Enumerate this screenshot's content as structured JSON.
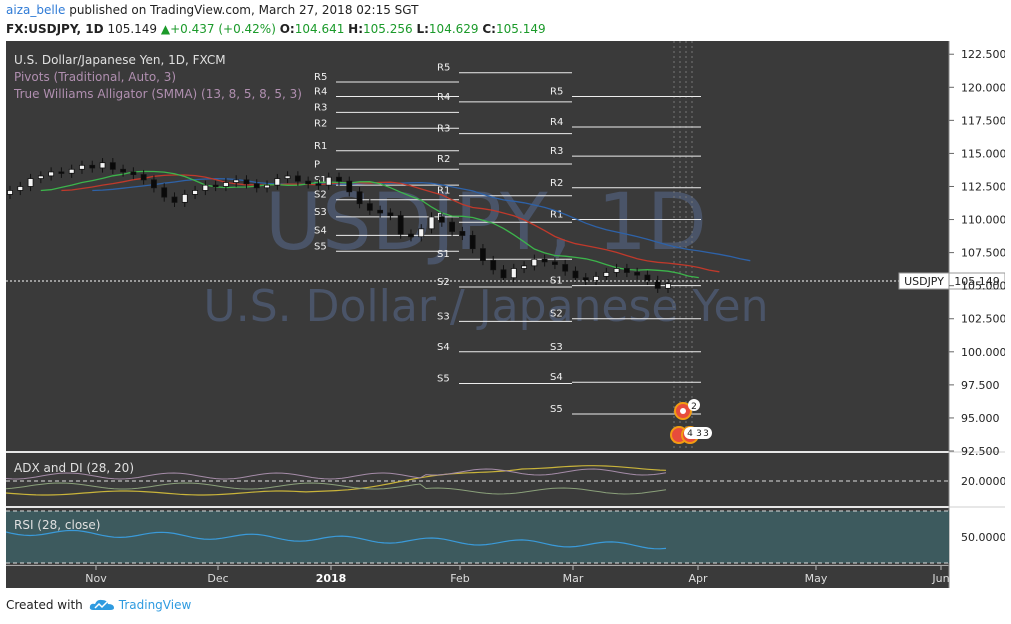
{
  "header": {
    "user": "aiza_belle",
    "published_text": " published on TradingView.com, March 27, 2018 02:15 SGT",
    "symbol": "FX:USDJPY, 1D",
    "price": "105.149",
    "change": "+0.437 (+0.42%)",
    "o_label": "O:",
    "o_value": "104.641",
    "h_label": "H:",
    "h_value": "105.256",
    "l_label": "L:",
    "l_value": "104.629",
    "c_label": "C:",
    "c_value": "105.149"
  },
  "legend": {
    "main": "U.S. Dollar/Japanese Yen, 1D, FXCM",
    "pivots": "Pivots (Traditional, Auto, 3)",
    "alligator": "True Williams Alligator (SMMA) (13, 8, 5, 8, 5, 3)",
    "adx": "ADX and DI (28, 20)",
    "rsi": "RSI (28, close)"
  },
  "watermark": {
    "big": "USDJPY, 1D",
    "small": "U.S. Dollar / Japanese Yen"
  },
  "price_tag": {
    "symbol": "USDJPY",
    "value": "105.149"
  },
  "colors": {
    "bg": "#3a3a3a",
    "axis_bg": "#ffffff",
    "jaw": "#2e62a8",
    "teeth": "#c0392b",
    "lips": "#3cb44b",
    "adx": "#c9b43a",
    "di_plus": "#a58ca8",
    "di_minus": "#8aa07a",
    "rsi": "#3a9ad9",
    "rsi_bg": "#3d5a5e"
  },
  "chart_data": {
    "type": "candlestick",
    "y_axis_ticks": [
      "122.500",
      "120.000",
      "117.500",
      "115.000",
      "112.500",
      "110.000",
      "107.500",
      "105.000",
      "102.500",
      "100.000",
      "97.500",
      "95.000",
      "92.500"
    ],
    "ylim": [
      92.5,
      123.5
    ],
    "adx_tick": "20.0000",
    "rsi_tick": "50.0000",
    "x_axis_labels": [
      "Nov",
      "Dec",
      "2018",
      "Feb",
      "Mar",
      "Apr",
      "May",
      "Jun"
    ],
    "pivot_sets": [
      {
        "labels": [
          "R5",
          "R4",
          "R3",
          "R2",
          "R1",
          "P",
          "S1",
          "S2",
          "S3",
          "S4",
          "S5"
        ]
      },
      {
        "labels": [
          "R5",
          "R4",
          "R3",
          "R2",
          "R1",
          "P",
          "S1",
          "S2",
          "S3",
          "S4",
          "S5"
        ]
      },
      {
        "labels": [
          "R5",
          "R4",
          "R3",
          "R2",
          "R1",
          "S1",
          "S2",
          "S3",
          "S4",
          "S5"
        ]
      }
    ],
    "close_series": [
      112.2,
      112.5,
      113.1,
      113.3,
      113.6,
      113.5,
      113.8,
      114.1,
      113.9,
      114.3,
      113.8,
      113.6,
      113.4,
      113.0,
      112.4,
      111.7,
      111.3,
      111.9,
      112.2,
      112.6,
      112.5,
      112.8,
      113.0,
      112.7,
      112.4,
      112.6,
      113.1,
      113.3,
      112.9,
      112.7,
      112.6,
      113.2,
      112.9,
      112.1,
      111.2,
      110.7,
      110.5,
      110.3,
      108.9,
      108.7,
      109.3,
      110.2,
      109.8,
      109.1,
      108.8,
      107.8,
      106.9,
      106.2,
      105.6,
      106.3,
      106.5,
      107.0,
      106.8,
      106.6,
      106.1,
      105.6,
      105.4,
      105.7,
      106.0,
      106.3,
      106.0,
      105.8,
      105.4,
      104.8,
      105.149
    ],
    "annotations": [
      "2",
      "4",
      "3",
      "3"
    ]
  },
  "footer": {
    "created_with": "Created with",
    "brand": "TradingView"
  }
}
